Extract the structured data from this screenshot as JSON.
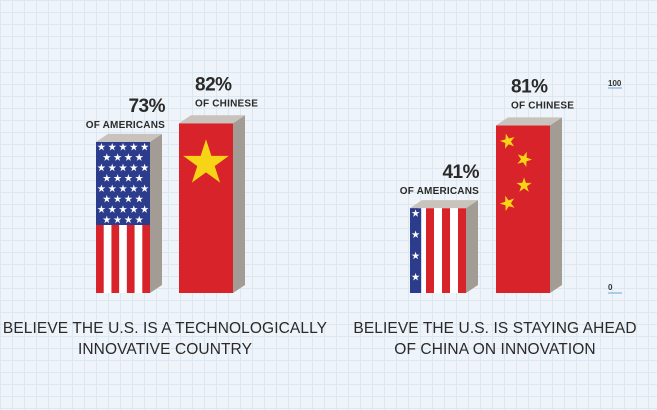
{
  "chart_data": [
    {
      "type": "bar",
      "categories": [
        "Americans",
        "Chinese"
      ],
      "values": [
        73,
        82
      ],
      "ylim": [
        0,
        100
      ],
      "labels": [
        {
          "value": "73%",
          "group": "OF AMERICANS"
        },
        {
          "value": "82%",
          "group": "OF CHINESE"
        }
      ],
      "caption": [
        "BELIEVE THE U.S. IS A TECHNOLOGICALLY",
        "INNOVATIVE COUNTRY"
      ]
    },
    {
      "type": "bar",
      "categories": [
        "Americans",
        "Chinese"
      ],
      "values": [
        41,
        81
      ],
      "ylim": [
        0,
        100
      ],
      "labels": [
        {
          "value": "41%",
          "group": "OF AMERICANS"
        },
        {
          "value": "81%",
          "group": "OF CHINESE"
        }
      ],
      "caption": [
        "BELIEVE THE U.S. IS STAYING AHEAD",
        "OF CHINA ON INNOVATION"
      ]
    }
  ],
  "axis": {
    "max_label": "100",
    "min_label": "0"
  },
  "colors": {
    "us_red": "#d8232a",
    "us_white": "#ffffff",
    "us_blue": "#2b3c8c",
    "china_red": "#d8232a",
    "china_star": "#f7d416",
    "bar_side": "#a29c94",
    "bar_top": "#c8c3bc"
  }
}
